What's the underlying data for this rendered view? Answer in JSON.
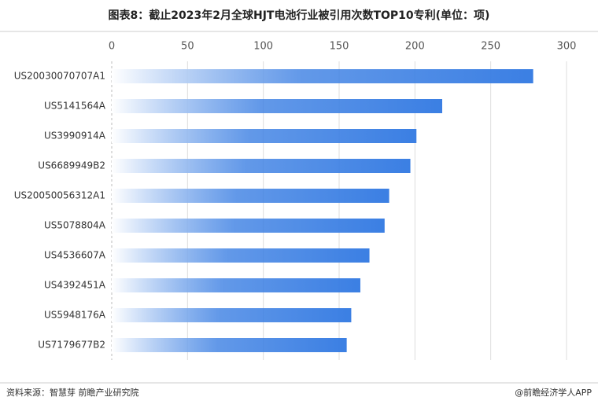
{
  "chart_data": {
    "type": "hbar",
    "title": "图表8：截止2023年2月全球HJT电池行业被引用次数TOP10专利(单位：项)",
    "categories": [
      "US20030070707A1",
      "US5141564A",
      "US3990914A",
      "US6689949B2",
      "US20050056312A1",
      "US5078804A",
      "US4536607A",
      "US4392451A",
      "US5948176A",
      "US7179677B2"
    ],
    "values": [
      278,
      218,
      201,
      197,
      183,
      180,
      170,
      164,
      158,
      155
    ],
    "color": "#3b7fe3",
    "xlim": [
      0,
      300
    ],
    "xticks": [
      0,
      50,
      100,
      150,
      200,
      250,
      300
    ],
    "grid": true,
    "source": "资料来源：智慧芽 前瞻产业研究院",
    "credit": "@前瞻经济学人APP"
  }
}
